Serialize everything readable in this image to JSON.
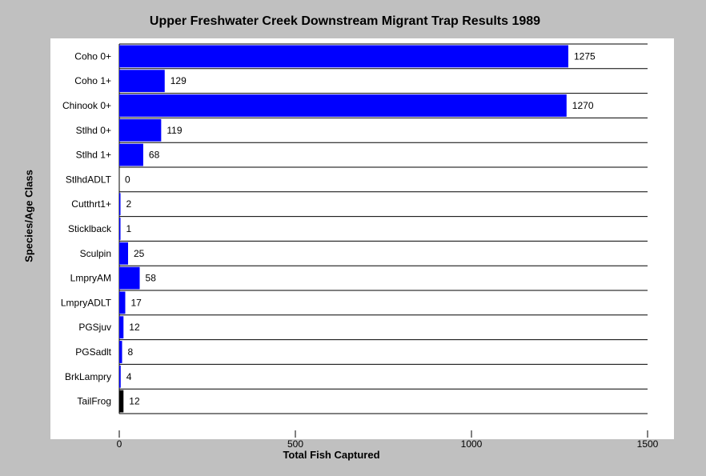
{
  "chart_data": {
    "type": "bar",
    "orientation": "horizontal",
    "title": "Upper Freshwater Creek Downstream Migrant Trap Results 1989",
    "xlabel": "Total Fish Captured",
    "ylabel": "Species/Age Class",
    "xlim": [
      0,
      1500
    ],
    "xticks": [
      "0",
      "500",
      "1000",
      "1500"
    ],
    "categories": [
      "Coho 0+",
      "Coho 1+",
      "Chinook 0+",
      "Stlhd 0+",
      "Stlhd 1+",
      "StlhdADLT",
      "Cutthrt1+",
      "Sticklback",
      "Sculpin",
      "LmpryAM",
      "LmpryADLT",
      "PGSjuv",
      "PGSadlt",
      "BrkLampry",
      "TailFrog"
    ],
    "values": [
      1275,
      129,
      1270,
      119,
      68,
      0,
      2,
      1,
      25,
      58,
      17,
      12,
      8,
      4,
      12
    ],
    "bar_colors": [
      "#0000ff",
      "#0000ff",
      "#0000ff",
      "#0000ff",
      "#0000ff",
      "#0000ff",
      "#0000ff",
      "#0000ff",
      "#0000ff",
      "#0000ff",
      "#0000ff",
      "#0000ff",
      "#0000ff",
      "#0000ff",
      "#000000"
    ],
    "grid": "horizontal row separators",
    "legend": "none"
  }
}
